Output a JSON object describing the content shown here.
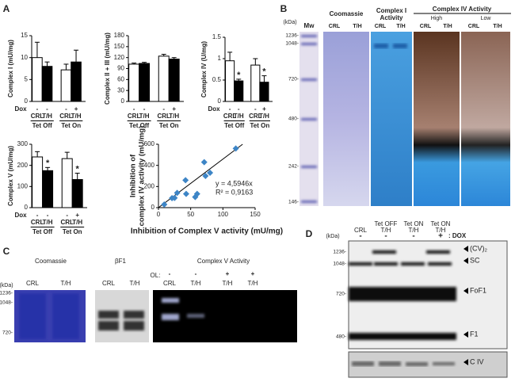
{
  "panel_labels": [
    "A",
    "B",
    "C",
    "D"
  ],
  "chart_data": [
    {
      "type": "bar",
      "y_label": "Complex I (mU/mg)",
      "categories": [
        "CRL",
        "T/H",
        "CRL",
        "T/H"
      ],
      "groups": [
        "Tet Off",
        "Tet On"
      ],
      "dox_label": "Dox",
      "dox": [
        "-",
        "-",
        "-",
        "+"
      ],
      "values": [
        10,
        8,
        7.2,
        9
      ],
      "errors": [
        3.5,
        1,
        1.3,
        2.7
      ],
      "colors": [
        "#ffffff",
        "#000000",
        "#ffffff",
        "#000000"
      ],
      "ylim": [
        0,
        15
      ],
      "yticks": [
        0,
        5,
        10,
        15
      ]
    },
    {
      "type": "bar",
      "y_label": "Complex II + III (mU/mg)",
      "categories": [
        "CRL",
        "T/H",
        "CRL",
        "T/H"
      ],
      "groups": [
        "Tet Off",
        "Tet On"
      ],
      "dox": [
        "-",
        "-",
        "-",
        "+"
      ],
      "values": [
        102,
        104,
        124,
        116
      ],
      "errors": [
        3,
        3,
        5,
        4
      ],
      "colors": [
        "#ffffff",
        "#000000",
        "#ffffff",
        "#000000"
      ],
      "ylim": [
        0,
        180
      ],
      "yticks": [
        0,
        30,
        60,
        90,
        120,
        150,
        180
      ]
    },
    {
      "type": "bar",
      "y_label": "Complex IV (U/mg)",
      "categories": [
        "CRL",
        "T/H",
        "CRL",
        "T/H"
      ],
      "groups": [
        "Tet Off",
        "Tet On"
      ],
      "dox_label": "Dox",
      "dox": [
        "-",
        "-",
        "-",
        "+"
      ],
      "values": [
        0.95,
        0.48,
        0.85,
        0.45
      ],
      "errors": [
        0.2,
        0.04,
        0.15,
        0.15
      ],
      "stars": [
        null,
        "*",
        null,
        "*"
      ],
      "colors": [
        "#ffffff",
        "#000000",
        "#ffffff",
        "#000000"
      ],
      "ylim": [
        0,
        1.5
      ],
      "yticks": [
        0,
        0.5,
        1,
        1.5
      ]
    },
    {
      "type": "bar",
      "y_label": "Complex V (mU/mg)",
      "categories": [
        "CRL",
        "T/H",
        "CRL",
        "T/H"
      ],
      "groups": [
        "Tet Off",
        "Tet On"
      ],
      "dox_label": "Dox",
      "dox": [
        "-",
        "-",
        "-",
        "+"
      ],
      "values": [
        240,
        175,
        232,
        133
      ],
      "errors": [
        25,
        15,
        30,
        30
      ],
      "stars": [
        null,
        "*",
        null,
        "*"
      ],
      "colors": [
        "#ffffff",
        "#000000",
        "#ffffff",
        "#000000"
      ],
      "ylim": [
        0,
        300
      ],
      "yticks": [
        0,
        100,
        200,
        300
      ]
    },
    {
      "type": "scatter",
      "x_label": "Inhibition of Complex V activity (mU/mg)",
      "y_label": [
        "Inhibition of",
        "complex IV activity (mU/mg)"
      ],
      "x": [
        9,
        21,
        25,
        29,
        42,
        43,
        57,
        60,
        71,
        73,
        80,
        120
      ],
      "values": [
        30,
        90,
        92,
        140,
        260,
        130,
        100,
        130,
        430,
        300,
        330,
        560
      ],
      "color": "#3d85c6",
      "fit": {
        "slope": 4.5946,
        "label": "y = 4,5946x"
      },
      "r2": {
        "value": 0.9163,
        "label": "R² = 0,9163"
      },
      "xlim": [
        0,
        150
      ],
      "xticks": [
        0,
        50,
        100,
        150
      ],
      "ylim": [
        0,
        600
      ],
      "yticks": [
        0,
        200,
        400,
        600
      ]
    }
  ],
  "panel_b": {
    "kda": "(kDa)",
    "mw": "Mw",
    "markers": [
      "1236-",
      "1048-",
      "720-",
      "480-",
      "242-",
      "146-"
    ],
    "coomassie": "Coomassie",
    "complex_i": [
      "Complex I",
      "Activity"
    ],
    "complex_iv": "Complex IV Activity",
    "high": "High",
    "low": "Low",
    "lanes": [
      "CRL",
      "T/H",
      "CRL",
      "T/H",
      "CRL",
      "T/H",
      "CRL",
      "T/H"
    ]
  },
  "panel_c": {
    "coomassie": "Coomassie",
    "bf1": "βF1",
    "complex_v": "Complex V Activity",
    "ol_label": "OL:",
    "ol": [
      "-",
      "-",
      "+",
      "+"
    ],
    "kda": "(kDa)",
    "markers": [
      "1236-",
      "1048-",
      "720-"
    ],
    "lanes": [
      "CRL",
      "T/H",
      "CRL",
      "T/H",
      "CRL",
      "T/H",
      "T/H",
      "T/H"
    ]
  },
  "panel_d": {
    "kda": "(kDa)",
    "headers": [
      [
        "CRL"
      ],
      [
        "Tet OFF",
        "T/H"
      ],
      [
        "Tet ON",
        "T/H"
      ],
      [
        "Tet ON",
        "T/H"
      ]
    ],
    "dox": [
      "-",
      "-",
      "-",
      "+"
    ],
    "dox_label": ": DOX",
    "markers": [
      "1236-",
      "1048-",
      "720-",
      "480-"
    ],
    "bands": [
      "(CV)₂",
      "SC",
      "FoF1",
      "F1",
      "C IV"
    ]
  }
}
